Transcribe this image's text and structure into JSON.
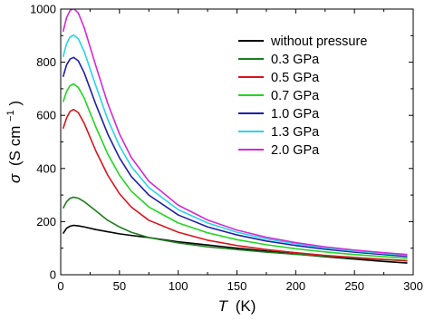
{
  "chart_data": {
    "type": "line",
    "xlabel_symbol": "T",
    "xlabel_unit": "(K)",
    "ylabel_symbol": "σ",
    "ylabel_unit_prefix": "(S cm",
    "ylabel_unit_exp": "−1",
    "ylabel_unit_suffix": ")",
    "xlim": [
      0,
      300
    ],
    "ylim": [
      0,
      1000
    ],
    "x_ticks": [
      0,
      50,
      100,
      150,
      200,
      250,
      300
    ],
    "y_ticks": [
      0,
      200,
      400,
      600,
      800,
      1000
    ],
    "grid": false,
    "legend_position": "top-right",
    "series": [
      {
        "name": "without pressure",
        "color": "#000000",
        "points": [
          [
            2,
            155
          ],
          [
            5,
            175
          ],
          [
            8,
            183
          ],
          [
            11,
            186
          ],
          [
            15,
            184
          ],
          [
            20,
            180
          ],
          [
            30,
            170
          ],
          [
            40,
            162
          ],
          [
            50,
            154
          ],
          [
            60,
            148
          ],
          [
            75,
            140
          ],
          [
            100,
            124
          ],
          [
            125,
            112
          ],
          [
            150,
            100
          ],
          [
            175,
            89
          ],
          [
            200,
            78
          ],
          [
            225,
            68
          ],
          [
            250,
            59
          ],
          [
            275,
            50
          ],
          [
            295,
            44
          ]
        ]
      },
      {
        "name": "0.3 GPa",
        "color": "#1e7d1e",
        "points": [
          [
            2,
            250
          ],
          [
            5,
            275
          ],
          [
            8,
            288
          ],
          [
            11,
            292
          ],
          [
            15,
            288
          ],
          [
            20,
            275
          ],
          [
            30,
            240
          ],
          [
            40,
            205
          ],
          [
            50,
            180
          ],
          [
            60,
            160
          ],
          [
            75,
            140
          ],
          [
            100,
            120
          ],
          [
            125,
            105
          ],
          [
            150,
            95
          ],
          [
            175,
            85
          ],
          [
            200,
            77
          ],
          [
            225,
            70
          ],
          [
            250,
            63
          ],
          [
            275,
            57
          ],
          [
            295,
            52
          ]
        ]
      },
      {
        "name": "0.5 GPa",
        "color": "#d9141c",
        "points": [
          [
            2,
            550
          ],
          [
            5,
            590
          ],
          [
            8,
            615
          ],
          [
            11,
            622
          ],
          [
            15,
            610
          ],
          [
            20,
            570
          ],
          [
            30,
            465
          ],
          [
            40,
            375
          ],
          [
            50,
            305
          ],
          [
            60,
            255
          ],
          [
            75,
            205
          ],
          [
            100,
            160
          ],
          [
            125,
            130
          ],
          [
            150,
            110
          ],
          [
            175,
            95
          ],
          [
            200,
            83
          ],
          [
            225,
            73
          ],
          [
            250,
            65
          ],
          [
            275,
            58
          ],
          [
            295,
            53
          ]
        ]
      },
      {
        "name": "0.7 GPa",
        "color": "#22d622",
        "points": [
          [
            2,
            650
          ],
          [
            5,
            690
          ],
          [
            8,
            712
          ],
          [
            11,
            718
          ],
          [
            15,
            705
          ],
          [
            20,
            665
          ],
          [
            30,
            555
          ],
          [
            40,
            455
          ],
          [
            50,
            375
          ],
          [
            60,
            315
          ],
          [
            75,
            255
          ],
          [
            100,
            195
          ],
          [
            125,
            158
          ],
          [
            150,
            132
          ],
          [
            175,
            113
          ],
          [
            200,
            98
          ],
          [
            225,
            86
          ],
          [
            250,
            76
          ],
          [
            275,
            68
          ],
          [
            295,
            62
          ]
        ]
      },
      {
        "name": "1.0 GPa",
        "color": "#1f1fa6",
        "points": [
          [
            2,
            745
          ],
          [
            5,
            790
          ],
          [
            8,
            812
          ],
          [
            11,
            818
          ],
          [
            15,
            805
          ],
          [
            20,
            760
          ],
          [
            30,
            640
          ],
          [
            40,
            530
          ],
          [
            50,
            440
          ],
          [
            60,
            370
          ],
          [
            75,
            300
          ],
          [
            100,
            225
          ],
          [
            125,
            180
          ],
          [
            150,
            150
          ],
          [
            175,
            127
          ],
          [
            200,
            110
          ],
          [
            225,
            96
          ],
          [
            250,
            85
          ],
          [
            275,
            76
          ],
          [
            295,
            69
          ]
        ]
      },
      {
        "name": "1.3 GPa",
        "color": "#29d4e6",
        "points": [
          [
            2,
            820
          ],
          [
            5,
            870
          ],
          [
            8,
            895
          ],
          [
            11,
            902
          ],
          [
            15,
            888
          ],
          [
            20,
            840
          ],
          [
            30,
            710
          ],
          [
            40,
            585
          ],
          [
            50,
            485
          ],
          [
            60,
            408
          ],
          [
            75,
            328
          ],
          [
            100,
            245
          ],
          [
            125,
            195
          ],
          [
            150,
            160
          ],
          [
            175,
            135
          ],
          [
            200,
            116
          ],
          [
            225,
            101
          ],
          [
            250,
            89
          ],
          [
            275,
            80
          ],
          [
            295,
            73
          ]
        ]
      },
      {
        "name": "2.0 GPa",
        "color": "#d42ad4",
        "points": [
          [
            2,
            915
          ],
          [
            5,
            968
          ],
          [
            8,
            995
          ],
          [
            11,
            1002
          ],
          [
            15,
            985
          ],
          [
            20,
            930
          ],
          [
            30,
            785
          ],
          [
            40,
            645
          ],
          [
            50,
            530
          ],
          [
            60,
            442
          ],
          [
            75,
            352
          ],
          [
            100,
            262
          ],
          [
            125,
            206
          ],
          [
            150,
            168
          ],
          [
            175,
            141
          ],
          [
            200,
            121
          ],
          [
            225,
            105
          ],
          [
            250,
            93
          ],
          [
            275,
            83
          ],
          [
            295,
            76
          ]
        ]
      }
    ]
  }
}
